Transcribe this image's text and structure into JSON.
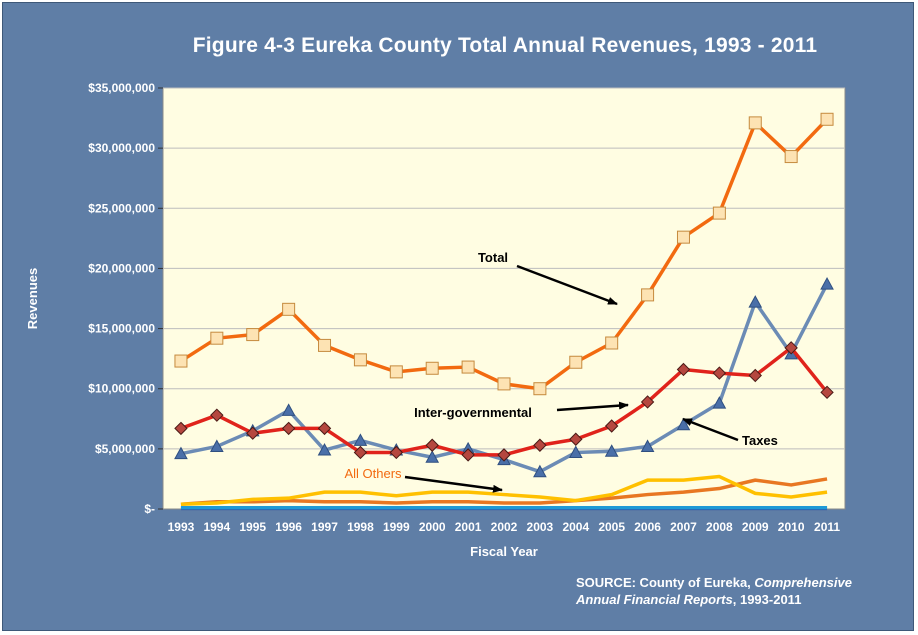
{
  "chart_data": {
    "type": "line",
    "title": "Figure  4-3 Eureka County Total Annual Revenues, 1993 - 2011",
    "xlabel": "Fiscal Year",
    "ylabel": "Revenues",
    "ylim": [
      0,
      35000000
    ],
    "y_ticks": [
      0,
      5000000,
      10000000,
      15000000,
      20000000,
      25000000,
      30000000,
      35000000
    ],
    "y_tick_labels": [
      "$-",
      "$5,000,000",
      "$10,000,000",
      "$15,000,000",
      "$20,000,000",
      "$25,000,000",
      "$30,000,000",
      "$35,000,000"
    ],
    "categories": [
      "1993",
      "1994",
      "1995",
      "1996",
      "1997",
      "1998",
      "1999",
      "2000",
      "2001",
      "2002",
      "2003",
      "2004",
      "2005",
      "2006",
      "2007",
      "2008",
      "2009",
      "2010",
      "2011"
    ],
    "grid": "horizontal",
    "series": [
      {
        "name": "Total",
        "color": "#f26a10",
        "marker": "square",
        "values": [
          12300000,
          14200000,
          14500000,
          16600000,
          13600000,
          12400000,
          11400000,
          11700000,
          11800000,
          10400000,
          10000000,
          12200000,
          13800000,
          17800000,
          22600000,
          24600000,
          32100000,
          29300000,
          32400000
        ]
      },
      {
        "name": "Taxes",
        "color": "#6b8bb5",
        "marker": "triangle",
        "values": [
          4600000,
          5200000,
          6500000,
          8200000,
          4900000,
          5700000,
          4900000,
          4300000,
          5000000,
          4100000,
          3100000,
          4700000,
          4800000,
          5200000,
          7000000,
          8800000,
          17200000,
          12900000,
          18700000
        ]
      },
      {
        "name": "Inter-governmental",
        "color": "#e0231b",
        "marker": "diamond",
        "values": [
          6700000,
          7800000,
          6300000,
          6700000,
          6700000,
          4700000,
          4700000,
          5300000,
          4500000,
          4500000,
          5300000,
          5800000,
          6900000,
          8900000,
          11600000,
          11300000,
          11100000,
          13400000,
          9700000
        ]
      },
      {
        "name": "All Others",
        "color": "#ffc000",
        "marker": "none",
        "values": [
          400000,
          500000,
          800000,
          900000,
          1400000,
          1400000,
          1100000,
          1400000,
          1400000,
          1200000,
          1000000,
          700000,
          1200000,
          2400000,
          2400000,
          2700000,
          1300000,
          1000000,
          1400000
        ]
      },
      {
        "color": "#e87722",
        "marker": "none",
        "values": [
          400000,
          600000,
          600000,
          700000,
          600000,
          600000,
          500000,
          600000,
          600000,
          500000,
          500000,
          700000,
          900000,
          1200000,
          1400000,
          1700000,
          2400000,
          2000000,
          2500000
        ]
      },
      {
        "color": "#1f9ad6",
        "marker": "none",
        "values": [
          100000,
          100000,
          100000,
          100000,
          100000,
          100000,
          100000,
          100000,
          100000,
          100000,
          100000,
          100000,
          100000,
          100000,
          100000,
          100000,
          100000,
          100000,
          100000
        ]
      },
      {
        "color": "#2f3f9a",
        "marker": "none",
        "values": [
          50000,
          50000,
          50000,
          50000,
          50000,
          50000,
          50000,
          50000,
          50000,
          50000,
          50000,
          50000,
          50000,
          50000,
          50000,
          50000,
          50000,
          50000,
          50000
        ]
      }
    ],
    "annotations": [
      {
        "text": "Total",
        "color": "#000000"
      },
      {
        "text": "Inter-governmental",
        "color": "#000000"
      },
      {
        "text": "Taxes",
        "color": "#000000"
      },
      {
        "text": "All Others",
        "color": "#f26a10"
      }
    ],
    "colors": {
      "background": "#5f7ea6",
      "plot_area": "#fffde2",
      "text": "#ffffff"
    }
  },
  "source": {
    "prefix": "SOURCE: County of Eureka, ",
    "italic1": "Comprehensive",
    "italic2": "Annual Financial Reports",
    "suffix": ", 1993-2011"
  }
}
